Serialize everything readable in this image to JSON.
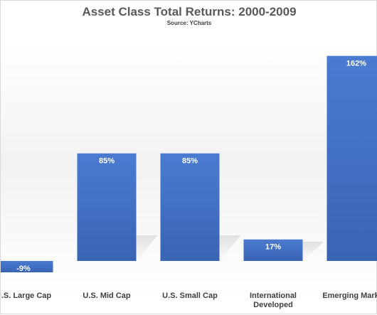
{
  "chart_data": {
    "type": "bar",
    "title": "Asset Class Total Returns: 2000-2009",
    "subtitle": "Source: YCharts",
    "categories": [
      "U.S. Large Cap",
      "U.S. Mid Cap",
      "U.S. Small Cap",
      "International Developed",
      "Emerging Markets"
    ],
    "values": [
      -9,
      85,
      85,
      17,
      162
    ],
    "value_labels": [
      "-9%",
      "85%",
      "85%",
      "17%",
      "162%"
    ],
    "bar_color": "#4472c4",
    "xlabel": "",
    "ylabel": "",
    "legend": "none",
    "grid": false
  }
}
